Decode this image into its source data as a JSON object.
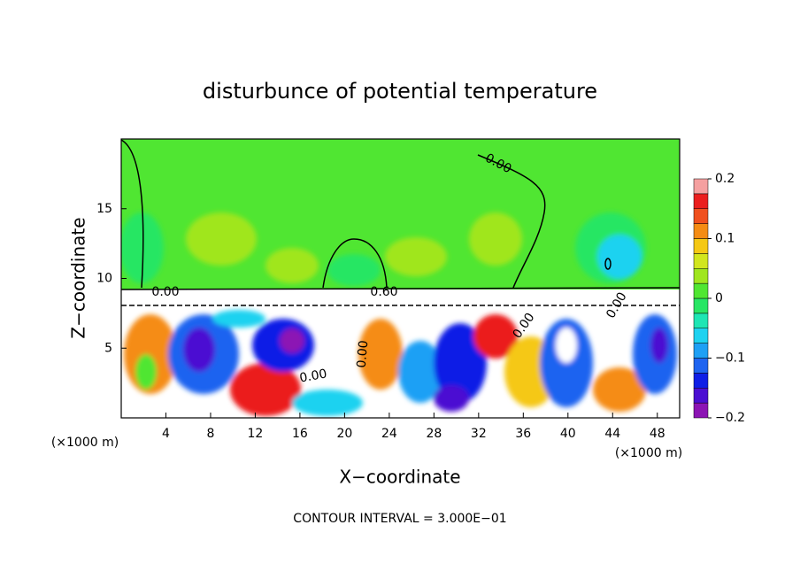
{
  "chart_data": {
    "type": "contour",
    "title": "disturbunce of potential temperature",
    "xlabel": "X−coordinate",
    "ylabel": "Z−coordinate",
    "x_unit_left": "(×1000 m)",
    "x_unit_right": "(×1000 m)",
    "footer": "CONTOUR INTERVAL = 3.000E−01",
    "xlim": [
      0,
      50
    ],
    "ylim": [
      0,
      20
    ],
    "xticks": [
      4,
      8,
      12,
      16,
      20,
      24,
      28,
      32,
      36,
      40,
      44,
      48
    ],
    "yticks": [
      5,
      10,
      15
    ],
    "contour_labels": [
      "0.00",
      "0.00",
      "0.60",
      "0.00",
      "0.00",
      "0.00",
      "0.00"
    ],
    "colorbar": {
      "lim": [
        -0.2,
        0.2
      ],
      "ticks": [
        {
          "value": -0.2,
          "label": "−0.2"
        },
        {
          "value": -0.1,
          "label": "−0.1"
        },
        0,
        0.1,
        0.2
      ],
      "levels": [
        -0.2,
        -0.175,
        -0.15,
        -0.125,
        -0.1,
        -0.075,
        -0.05,
        -0.025,
        0,
        0.025,
        0.05,
        0.075,
        0.1,
        0.125,
        0.15,
        0.175,
        0.2
      ],
      "colors": [
        "#8c14b4",
        "#4b0fd2",
        "#0f1ee6",
        "#1e64f0",
        "#1ea0f5",
        "#1ed2f0",
        "#1ee6b4",
        "#28e664",
        "#50e632",
        "#a0e61e",
        "#d2e61e",
        "#f5c814",
        "#f58c14",
        "#f0501e",
        "#eb1e1e",
        "#f5a0a0"
      ]
    }
  }
}
